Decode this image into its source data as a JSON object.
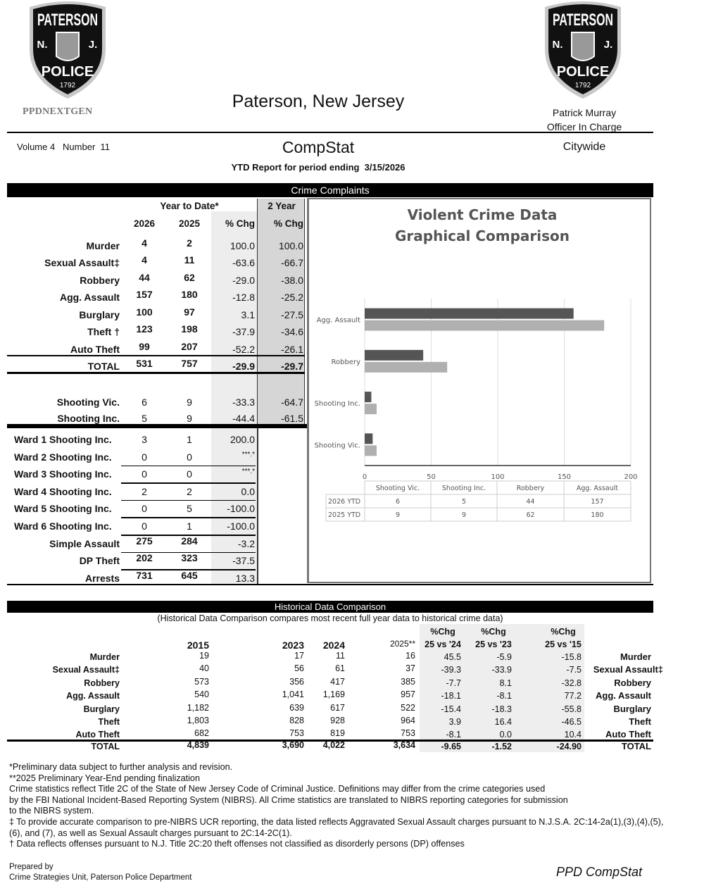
{
  "header": {
    "logo_text": {
      "top": "PATERSON",
      "left": "N.",
      "right": "J.",
      "bottom": "POLICE",
      "year": "1792"
    },
    "brand": "PPDNEXTGEN",
    "city_title": "Paterson, New Jersey",
    "officer_name": "Patrick Murray",
    "officer_title": "Officer In Charge",
    "volume": "Volume 4   Number  11",
    "report_title": "CompStat",
    "scope": "Citywide",
    "period": "YTD Report for period ending  3/15/2026"
  },
  "crime_complaints": {
    "title": "Crime Complaints",
    "group_header": "Year to Date*",
    "two_year_header": "2 Year",
    "columns": [
      "2026",
      "2025",
      "% Chg",
      "% Chg"
    ],
    "rows": [
      {
        "label": "Murder",
        "v2026": "4",
        "v2025": "2",
        "chg": "100.0",
        "chg2": "100.0",
        "bold": true
      },
      {
        "label": "Sexual Assault‡",
        "v2026": "4",
        "v2025": "11",
        "chg": "-63.6",
        "chg2": "-66.7",
        "bold": true
      },
      {
        "label": "Robbery",
        "v2026": "44",
        "v2025": "62",
        "chg": "-29.0",
        "chg2": "-38.0",
        "bold": true
      },
      {
        "label": "Agg. Assault",
        "v2026": "157",
        "v2025": "180",
        "chg": "-12.8",
        "chg2": "-25.2",
        "bold": true
      },
      {
        "label": "Burglary",
        "v2026": "100",
        "v2025": "97",
        "chg": "3.1",
        "chg2": "-27.5",
        "bold": true
      },
      {
        "label": "Theft †",
        "v2026": "123",
        "v2025": "198",
        "chg": "-37.9",
        "chg2": "-34.6",
        "bold": true
      },
      {
        "label": "Auto Theft",
        "v2026": "99",
        "v2025": "207",
        "chg": "-52.2",
        "chg2": "-26.1",
        "bold": true
      },
      {
        "label": "TOTAL",
        "v2026": "531",
        "v2025": "757",
        "chg": "-29.9",
        "chg2": "-29.7",
        "bold": true,
        "total": true
      }
    ],
    "shooting_rows": [
      {
        "label": "Shooting Vic.",
        "v2026": "6",
        "v2025": "9",
        "chg": "-33.3",
        "chg2": "-64.7"
      },
      {
        "label": "Shooting Inc.",
        "v2026": "5",
        "v2025": "9",
        "chg": "-44.4",
        "chg2": "-61.5"
      }
    ],
    "other_rows": [
      {
        "label": "Ward 1 Shooting Inc.",
        "v2026": "3",
        "v2025": "1",
        "chg": "200.0"
      },
      {
        "label": "Ward 2 Shooting Inc.",
        "v2026": "0",
        "v2025": "0",
        "chg": "***.*"
      },
      {
        "label": "Ward 3 Shooting Inc.",
        "v2026": "0",
        "v2025": "0",
        "chg": "***.*"
      },
      {
        "label": "Ward 4 Shooting Inc.",
        "v2026": "2",
        "v2025": "2",
        "chg": "0.0"
      },
      {
        "label": "Ward 5 Shooting Inc.",
        "v2026": "0",
        "v2025": "5",
        "chg": "-100.0"
      },
      {
        "label": "Ward 6 Shooting Inc.",
        "v2026": "0",
        "v2025": "1",
        "chg": "-100.0"
      },
      {
        "label": "Simple Assault",
        "v2026": "275",
        "v2025": "284",
        "chg": "-3.2",
        "boldvals": true
      },
      {
        "label": "DP Theft",
        "v2026": "202",
        "v2025": "323",
        "chg": "-37.5",
        "boldvals": true
      },
      {
        "label": "Arrests",
        "v2026": "731",
        "v2025": "645",
        "chg": "13.3",
        "boldvals": true
      }
    ]
  },
  "chart_data": {
    "type": "bar",
    "orientation": "horizontal",
    "title": "Violent Crime Data\nGraphical Comparison",
    "title_lines": [
      "Violent Crime Data",
      "Graphical Comparison"
    ],
    "categories": [
      "Shooting Vic.",
      "Shooting Inc.",
      "Robbery",
      "Agg. Assault"
    ],
    "series": [
      {
        "name": "2026 YTD",
        "values": [
          6,
          5,
          44,
          157
        ],
        "color": "#555555"
      },
      {
        "name": "2025 YTD",
        "values": [
          9,
          9,
          62,
          180
        ],
        "color": "#b0b0b0"
      }
    ],
    "xlim": [
      0,
      200
    ],
    "xticks": [
      "0",
      "50",
      "100",
      "150",
      "200"
    ],
    "grid": true,
    "legend": "data-table-below"
  },
  "historical": {
    "title": "Historical Data Comparison",
    "subtitle": "(Historical Data Comparison compares most recent full year data to historical crime data)",
    "columns": [
      "2015",
      "2023",
      "2024",
      "2025**"
    ],
    "chg_columns": [
      {
        "top": "%Chg",
        "bottom": "25 vs '24"
      },
      {
        "top": "%Chg",
        "bottom": "25 vs '23"
      },
      {
        "top": "%Chg",
        "bottom": "25 vs '15"
      }
    ],
    "rows": [
      {
        "label": "Murder",
        "values": [
          "19",
          "17",
          "11",
          "16"
        ],
        "chg": [
          "45.5",
          "-5.9",
          "-15.8"
        ]
      },
      {
        "label": "Sexual Assault‡",
        "values": [
          "40",
          "56",
          "61",
          "37"
        ],
        "chg": [
          "-39.3",
          "-33.9",
          "-7.5"
        ]
      },
      {
        "label": "Robbery",
        "values": [
          "573",
          "356",
          "417",
          "385"
        ],
        "chg": [
          "-7.7",
          "8.1",
          "-32.8"
        ]
      },
      {
        "label": "Agg. Assault",
        "values": [
          "540",
          "1,041",
          "1,169",
          "957"
        ],
        "chg": [
          "-18.1",
          "-8.1",
          "77.2"
        ]
      },
      {
        "label": "Burglary",
        "values": [
          "1,182",
          "639",
          "617",
          "522"
        ],
        "chg": [
          "-15.4",
          "-18.3",
          "-55.8"
        ]
      },
      {
        "label": "Theft",
        "values": [
          "1,803",
          "828",
          "928",
          "964"
        ],
        "chg": [
          "3.9",
          "16.4",
          "-46.5"
        ]
      },
      {
        "label": "Auto Theft",
        "values": [
          "682",
          "753",
          "819",
          "753"
        ],
        "chg": [
          "-8.1",
          "0.0",
          "10.4"
        ]
      },
      {
        "label": "TOTAL",
        "values": [
          "4,839",
          "3,690",
          "4,022",
          "3,634"
        ],
        "chg": [
          "-9.65",
          "-1.52",
          "-24.90"
        ],
        "total": true
      }
    ]
  },
  "footnotes": [
    "*Preliminary data subject to further analysis and revision.",
    "**2025 Preliminary Year-End pending finalization",
    "Crime statistics reflect Title 2C of the State of New Jersey Code of Criminal Justice.  Definitions may differ from the crime categories used",
    "by the FBI National Incident-Based Reporting System (NIBRS). All Crime statistics are translated to NIBRS reporting categories for submission",
    "to the NIBRS system.",
    "‡ To provide accurate comparison to pre-NIBRS UCR reporting, the data listed reflects Aggravated Sexual Assault charges pursuant to N.J.S.A. 2C:14-2a(1),(3),(4),(5),",
    "(6), and (7), as well as Sexual Assault charges pursuant to 2C:14-2C(1).",
    "† Data reflects offenses pursuant to N.J. Title 2C:20 theft offenses not classified as disorderly persons (DP) offenses"
  ],
  "footer": {
    "prepared_by": "Prepared by",
    "unit": "Crime Strategies Unit, Paterson Police Department",
    "brand": "PPD CompStat"
  }
}
